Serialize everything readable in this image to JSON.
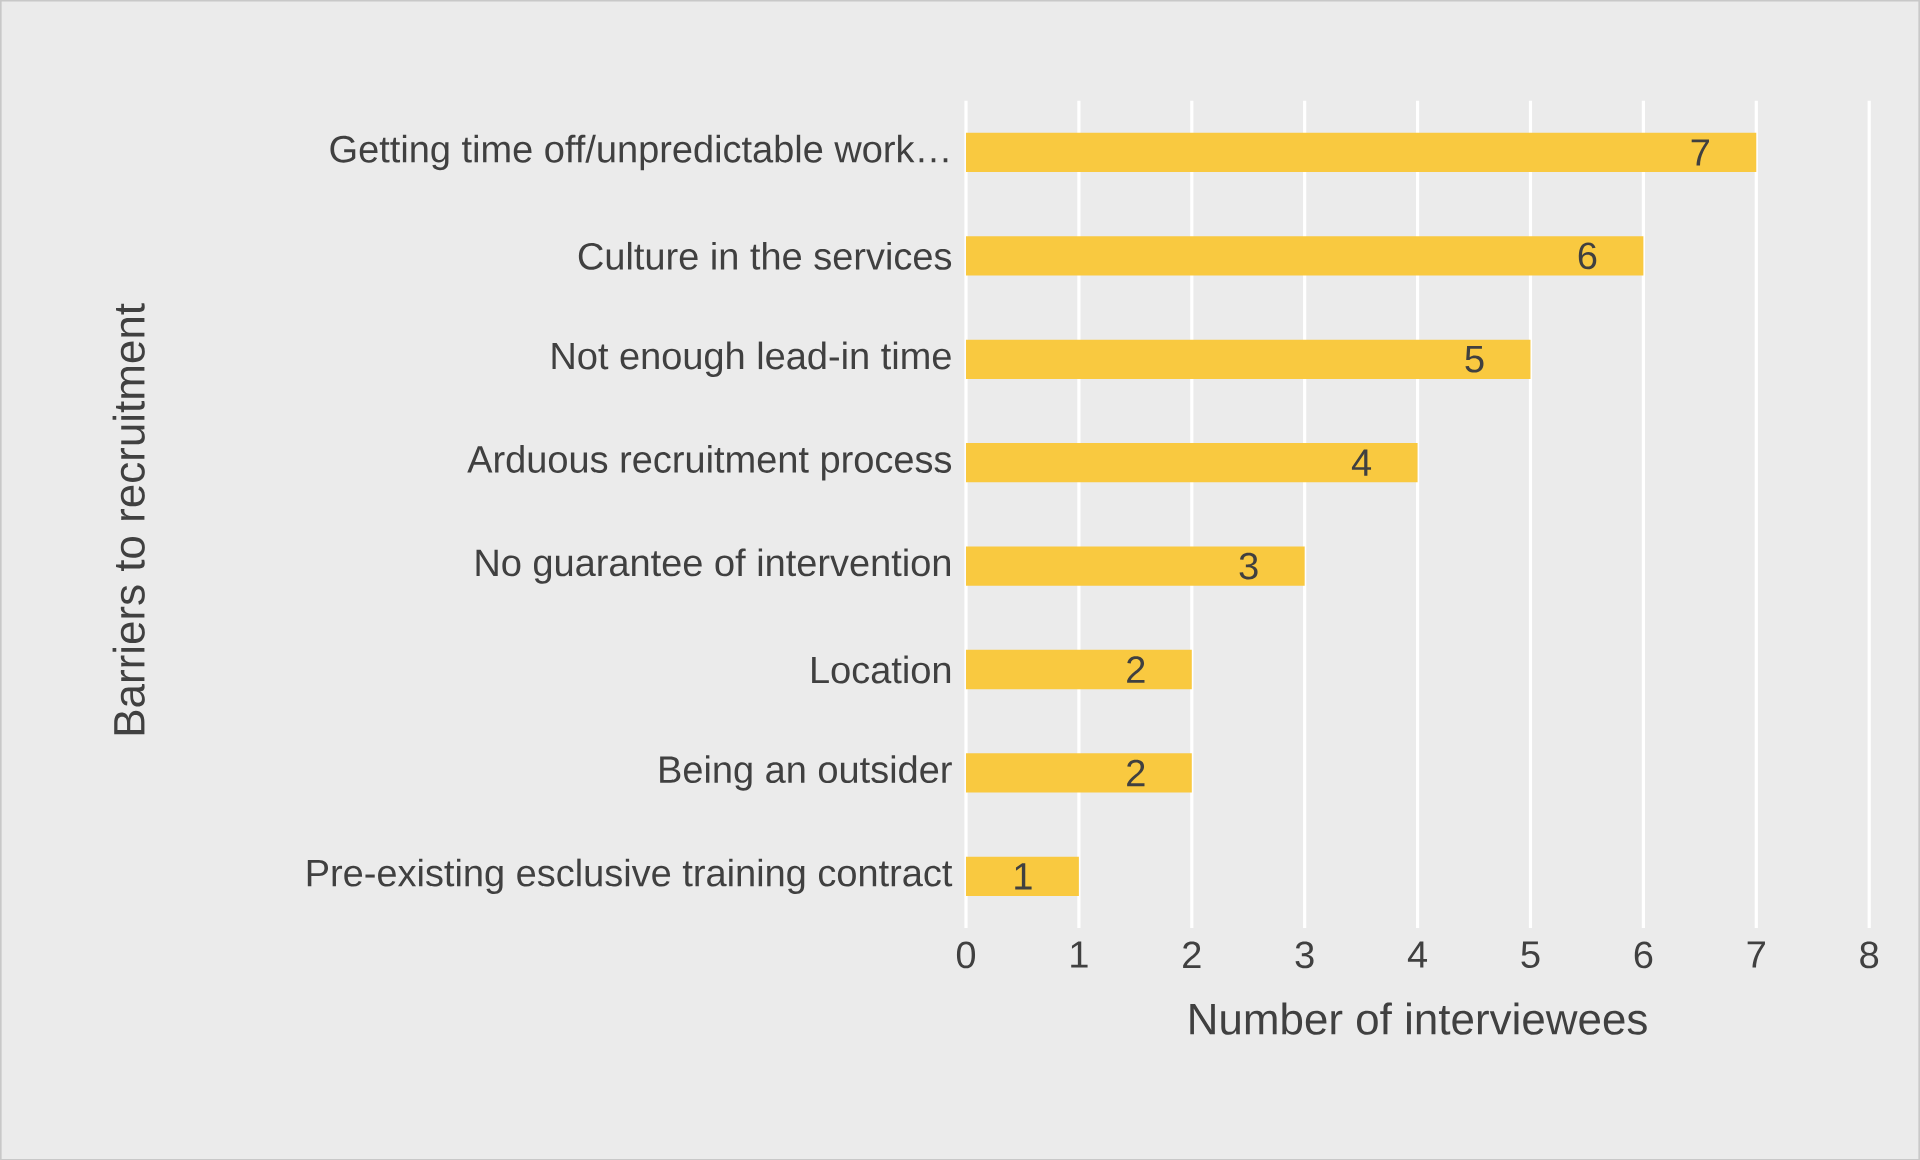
{
  "chart_data": {
    "type": "bar",
    "orientation": "horizontal",
    "xlabel": "Number of interviewees",
    "ylabel": "Barriers to recruitment",
    "categories": [
      "Getting time off/unpredictable work…",
      "Culture in the services",
      "Not enough lead-in time",
      "Arduous recruitment process",
      "No guarantee of intervention",
      "Location",
      "Being an outsider",
      "Pre-existing esclusive training contract"
    ],
    "values": [
      7,
      6,
      5,
      4,
      3,
      2,
      2,
      1
    ],
    "color": "#f9c940",
    "xlim": [
      0,
      8
    ],
    "xticks": [
      0,
      1,
      2,
      3,
      4,
      5,
      6,
      7,
      8
    ],
    "grid": "x",
    "data_labels": true
  }
}
